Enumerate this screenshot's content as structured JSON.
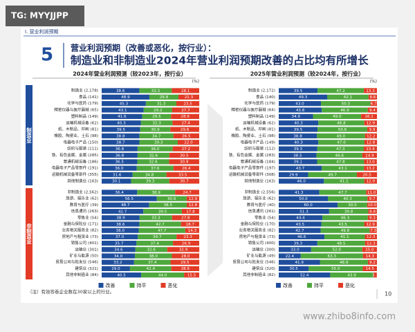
{
  "overlay_tag": "TG: MYYJJPP",
  "header": "Ⅰ. 营业利润预期",
  "section_number": "5",
  "title_line1": "营业利润预期（改善或恶化，按行业）：",
  "title_line2": "制造业和非制造业2024年营业利润预期改善的占比均有所增长",
  "section_labels": [
    "制造业",
    "非制造业"
  ],
  "note": "（注）有效答卷企业数在30家以上的行业。",
  "page_number": "10",
  "watermark": "www.zhibo8info.com",
  "chart_data": [
    {
      "type": "bar",
      "orientation": "horizontal",
      "stacked": true,
      "title": "2024年营业利润预测（较2023年，按行业）",
      "unit": "(%)",
      "xlim": [
        0,
        100
      ],
      "categories": [
        "制造业 (2,178)",
        "食品 (141)",
        "化学与医药 (179)",
        "精密仪器与医疗器械 (65)",
        "塑料制品 (149)",
        "运输机械设备 (62)",
        "纸、木制品、印刷 (81)",
        "橡胶、陶瓷业、土石 (98)",
        "电器电子产品 (150)",
        "纺织与服装 (111)",
        "铁、有色金属、金属 (285)",
        "普通机械设备 (186)",
        "电器电子产品零部件 (191)",
        "运输机械设备零部件 (355)",
        "其他制造业 (163)",
        "非制造业 (2,562)",
        "旅游、娱乐业 (62)",
        "教育与医疗 (39)",
        "信息通讯 (263)",
        "零售业 (54)",
        "金融与保险业 (171)",
        "业务相关服务业 (82)",
        "房地产与租赁业 (73)",
        "销售公司 (401)",
        "运输业 (301)",
        "矿业与能源 (50)",
        "贸易公司与批发业 (546)",
        "建筑业 (321)",
        "其他非制造业 (84)"
      ],
      "series": [
        {
          "name": "改善",
          "color": "#1f4e9c",
          "values": [
            38.6,
            48.9,
            45.3,
            43.1,
            41.6,
            40.3,
            39.5,
            38.8,
            38.7,
            36.8,
            36.8,
            36.5,
            36.0,
            31.6,
            30.1,
            36.4,
            56.5,
            48.7,
            42.7,
            38.9,
            38.6,
            38.0,
            37.0,
            35.7,
            34.6,
            34.0,
            33.2,
            29.0,
            40.5
          ],
          "value_labels": [
            "38.6",
            "48.9",
            "45.3",
            "43.1",
            "41.6",
            "40.3",
            "39.5",
            "38.8",
            "38.7",
            "36.8",
            "36.8",
            "36.5",
            "36.0",
            "31.6",
            "30.1",
            "36.4",
            "56.5",
            "48.7",
            "42.7",
            "38.9",
            "38.6",
            "38.0",
            "37.0",
            "35.7",
            "34.6",
            "34.0",
            "33.2",
            "29.0",
            "40.5"
          ]
        },
        {
          "name": "持平",
          "color": "#4fa83d",
          "values": [
            33.3,
            29.8,
            31.3,
            29.2,
            29.5,
            32.3,
            30.9,
            34.7,
            39.3,
            36.0,
            32.6,
            32.6,
            37.6,
            34.8,
            39.3,
            38.9,
            30.6,
            38.5,
            39.5,
            33.3,
            42.7,
            47.7,
            39.7,
            37.4,
            32.6,
            38.0,
            37.4,
            42.4,
            44.0
          ],
          "value_labels": [
            "33.3",
            "29.8",
            "31.3",
            "29.2",
            "29.5",
            "32.3",
            "30.9",
            "34.7",
            "39.3",
            "36.0",
            "32.6",
            "32.6",
            "37.6",
            "34.8",
            "39.3",
            "38.9",
            "30.6",
            "38.5",
            "39.5",
            "33.3",
            "42.7",
            "47.7",
            "39.7",
            "37.4",
            "32.6",
            "38.0",
            "37.4",
            "42.4",
            "44.0"
          ]
        },
        {
          "name": "恶化",
          "color": "#e23b26",
          "values": [
            28.1,
            21.3,
            23.5,
            27.7,
            28.9,
            27.4,
            29.6,
            26.5,
            22.0,
            27.2,
            30.5,
            30.9,
            26.4,
            33.5,
            30.7,
            24.7,
            12.9,
            12.8,
            17.8,
            27.8,
            18.7,
            14.3,
            23.3,
            26.9,
            32.9,
            28.0,
            29.5,
            28.6,
            15.5
          ],
          "value_labels": [
            "28.1",
            "21.3",
            "23.5",
            "27.7",
            "28.9",
            "27.4",
            "29.6",
            "26.5",
            "22.0",
            "27.2",
            "30.5",
            "30.9",
            "26.4",
            "33.5",
            "30.7",
            "24.7",
            "12.9",
            "12.8",
            "17.8",
            "27.8",
            "18.7",
            "14.3",
            "23.3",
            "26.9",
            "32.9",
            "28.0",
            "29.5",
            "28.6",
            "15.5"
          ]
        }
      ]
    },
    {
      "type": "bar",
      "orientation": "horizontal",
      "stacked": true,
      "title": "2025年营业利润预测（较2024年，按行业）",
      "unit": "(%)",
      "xlim": [
        0,
        100
      ],
      "categories": [
        "制造业 (2,172)",
        "食品 (140)",
        "化学与医药 (179)",
        "精密仪器与医疗器械 (64)",
        "塑料制品 (149)",
        "运输机械设备 (62)",
        "纸、木制品、印刷 (81)",
        "橡胶、陶瓷业、土石 (98)",
        "电器电子产品 (149)",
        "纺织与服装 (112)",
        "铁、有色金属、金属 (283)",
        "普通机械设备 (184)",
        "电器电子产品零部件 (197)",
        "运输机械设备零部件 (308)",
        "其他制造业 (163)",
        "非制造业 (2,556)",
        "旅游、娱乐业 (62)",
        "教育与医疗 (40)",
        "信息通讯 (261)",
        "零售业 (54)",
        "金融与保险业 (170)",
        "业务相关服务业 (82)",
        "房地产与租赁业 (73)",
        "销售公司 (400)",
        "运输业 (300)",
        "矿业与能源 (49)",
        "贸易公司与批发业 (546)",
        "建筑业 (320)",
        "其他非制造业 (82)"
      ],
      "series": [
        {
          "name": "改善",
          "color": "#1f4e9c",
          "values": [
            39.5,
            49.3,
            43.0,
            43.8,
            34.9,
            40.3,
            39.5,
            38.8,
            40.3,
            39.3,
            38.5,
            39.1,
            43.7,
            29.9,
            46.0,
            41.3,
            50.0,
            60.0,
            51.3,
            44.4,
            43.5,
            42.7,
            46.6,
            39.3,
            33.0,
            22.4,
            41.9,
            30.5,
            52.4
          ],
          "value_labels": [
            "39.5",
            "49.3",
            "43.0",
            "43.8",
            "34.9",
            "40.3",
            "39.5",
            "38.8",
            "40.3",
            "39.3",
            "38.5",
            "39.1",
            "43.7",
            "29.9",
            "46.0",
            "41.3",
            "50.0",
            "60.0",
            "51.3",
            "44.4",
            "43.5",
            "42.7",
            "46.6",
            "39.3",
            "33.0",
            "22.4",
            "41.9",
            "30.5",
            "52.4"
          ]
        },
        {
          "name": "持平",
          "color": "#4fa83d",
          "values": [
            47.2,
            42.1,
            50.3,
            46.9,
            49.0,
            46.8,
            50.6,
            49.0,
            47.0,
            47.3,
            46.6,
            47.8,
            43.1,
            49.7,
            41.1,
            47.7,
            40.3,
            30.0,
            39.8,
            46.3,
            43.5,
            49.8,
            41.1,
            48.5,
            52.0,
            63.3,
            48.9,
            55.0,
            43.9
          ],
          "value_labels": [
            "47.2",
            "42.1",
            "50.3",
            "46.9",
            "49.0",
            "46.8",
            "50.6",
            "49.0",
            "47.0",
            "47.3",
            "46.6",
            "47.8",
            "43.1",
            "49.7",
            "41.1",
            "47.7",
            "40.3",
            "30.0",
            "39.8",
            "46.3",
            "43.5",
            "49.8",
            "41.1",
            "48.5",
            "52.0",
            "63.3",
            "48.9",
            "55.0",
            "43.9"
          ]
        },
        {
          "name": "恶化",
          "color": "#e23b26",
          "values": [
            13.3,
            8.6,
            6.7,
            9.4,
            16.1,
            12.9,
            9.9,
            12.2,
            12.8,
            13.4,
            14.9,
            13.0,
            13.2,
            20.5,
            12.9,
            11.0,
            9.7,
            10.0,
            8.8,
            9.3,
            12.9,
            7.3,
            12.3,
            12.3,
            15.0,
            14.3,
            9.2,
            14.5,
            3.7
          ],
          "value_labels": [
            "13.3",
            "8.6",
            "6.7",
            "9.4",
            "16.1",
            "12.9",
            "9.9",
            "12.2",
            "12.8",
            "13.4",
            "14.9",
            "13.0",
            "13.2",
            "20.5",
            "12.9",
            "11.0",
            "9.7",
            "10.0",
            "8.8",
            "9.3",
            "12.9",
            "7.3",
            "12.3",
            "12.3",
            "15.0",
            "14.3",
            "9.2",
            "14.5",
            "3.7"
          ]
        }
      ]
    }
  ]
}
